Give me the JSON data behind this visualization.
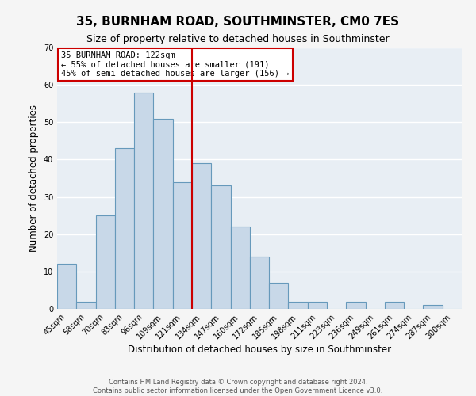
{
  "title": "35, BURNHAM ROAD, SOUTHMINSTER, CM0 7ES",
  "subtitle": "Size of property relative to detached houses in Southminster",
  "xlabel": "Distribution of detached houses by size in Southminster",
  "ylabel": "Number of detached properties",
  "bar_labels": [
    "45sqm",
    "58sqm",
    "70sqm",
    "83sqm",
    "96sqm",
    "109sqm",
    "121sqm",
    "134sqm",
    "147sqm",
    "160sqm",
    "172sqm",
    "185sqm",
    "198sqm",
    "211sqm",
    "223sqm",
    "236sqm",
    "249sqm",
    "261sqm",
    "274sqm",
    "287sqm",
    "300sqm"
  ],
  "bar_heights": [
    12,
    2,
    25,
    43,
    58,
    51,
    34,
    39,
    33,
    22,
    14,
    7,
    2,
    2,
    0,
    2,
    0,
    2,
    0,
    1,
    0
  ],
  "bar_color": "#c8d8e8",
  "bar_edge_color": "#6699bb",
  "background_color": "#e8eef4",
  "fig_background_color": "#f5f5f5",
  "grid_color": "#ffffff",
  "annotation_box_edge": "#cc0000",
  "vline_color": "#cc0000",
  "vline_x": 6.5,
  "annotation_title": "35 BURNHAM ROAD: 122sqm",
  "annotation_line1": "← 55% of detached houses are smaller (191)",
  "annotation_line2": "45% of semi-detached houses are larger (156) →",
  "ylim": [
    0,
    70
  ],
  "yticks": [
    0,
    10,
    20,
    30,
    40,
    50,
    60,
    70
  ],
  "footer1": "Contains HM Land Registry data © Crown copyright and database right 2024.",
  "footer2": "Contains public sector information licensed under the Open Government Licence v3.0.",
  "title_fontsize": 11,
  "subtitle_fontsize": 9,
  "xlabel_fontsize": 8.5,
  "ylabel_fontsize": 8.5,
  "tick_fontsize": 7,
  "annotation_fontsize": 7.5,
  "footer_fontsize": 6
}
